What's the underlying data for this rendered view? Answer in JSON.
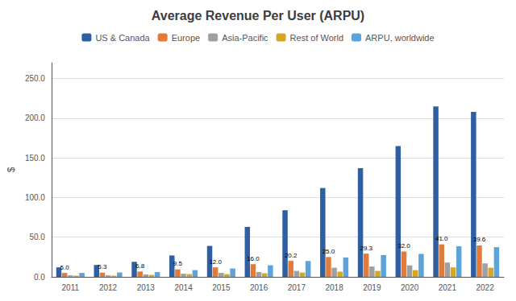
{
  "chart_data": {
    "type": "bar",
    "title": "Average Revenue Per User (ARPU)",
    "ylabel": "$",
    "categories": [
      "2011",
      "2012",
      "2013",
      "2014",
      "2015",
      "2016",
      "2017",
      "2018",
      "2019",
      "2020",
      "2021",
      "2022"
    ],
    "series": [
      {
        "name": "US & Canada",
        "color": "#2e5fa3",
        "values": [
          12.0,
          15.0,
          19.0,
          27.0,
          39.0,
          63.0,
          84.0,
          112.0,
          137.0,
          165.0,
          215.0,
          208.0
        ]
      },
      {
        "name": "Europe",
        "color": "#e07b39",
        "values": [
          5.0,
          5.3,
          6.8,
          9.5,
          12.0,
          16.0,
          20.2,
          25.0,
          29.3,
          32.0,
          41.0,
          39.6
        ],
        "data_labels": true,
        "value_labels": [
          "5.0",
          "5.3",
          "6.8",
          "9.5",
          "12.0",
          "16.0",
          "20.2",
          "25.0",
          "29.3",
          "32.0",
          "41.0",
          "39.6"
        ]
      },
      {
        "name": "Asia-Pacific",
        "color": "#a0a0a0",
        "values": [
          2.0,
          2.0,
          3.0,
          4.0,
          5.0,
          6.0,
          7.5,
          11.5,
          13.0,
          14.5,
          18.0,
          17.0
        ]
      },
      {
        "name": "Rest of World",
        "color": "#d4a820",
        "values": [
          1.5,
          1.5,
          2.5,
          3.5,
          3.5,
          4.5,
          5.5,
          6.5,
          7.5,
          8.5,
          12.0,
          11.5
        ]
      },
      {
        "name": "ARPU, worldwide",
        "color": "#5ba3d9",
        "values": [
          5.0,
          5.5,
          6.0,
          8.5,
          10.5,
          14.5,
          20.0,
          24.5,
          27.5,
          29.0,
          38.5,
          37.5
        ]
      }
    ],
    "ylim": [
      0,
      270
    ],
    "yticks": [
      {
        "value": 0,
        "label": "0.0"
      },
      {
        "value": 50,
        "label": "50.0"
      },
      {
        "value": 100,
        "label": "100.0"
      },
      {
        "value": 150,
        "label": "150.0"
      },
      {
        "value": 200,
        "label": "200.0"
      },
      {
        "value": 250,
        "label": "250.0"
      }
    ],
    "grid": true,
    "legend": "top"
  }
}
